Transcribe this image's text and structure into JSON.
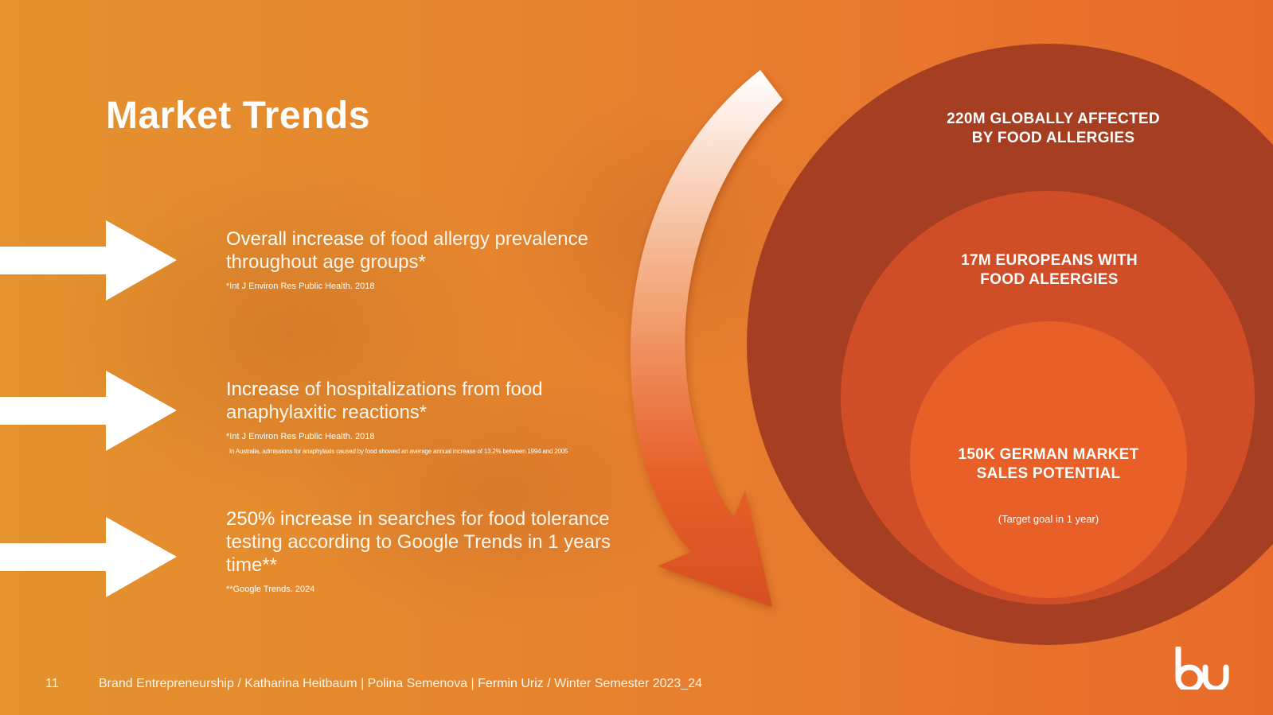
{
  "slide": {
    "title": "Market Trends",
    "page_number": "11"
  },
  "trends": [
    {
      "highlight": "Overall increase",
      "text": " of food allergy prevalence throughout age groups*",
      "note": "*Int J Environ Res Public Health. 2018",
      "note2": ""
    },
    {
      "highlight": "Increase",
      "text": " of hospitalizations from food anaphylaxitic reactions*",
      "note": "*Int J Environ Res Public Health. 2018",
      "note2": "In Australia, admissions for anaphylaxis caused by food showed an average annual increase of 13.2% between 1994 and 2005"
    },
    {
      "highlight": "250% increase",
      "text": " in searches for food tolerance testing according to Google Trends in 1 years time**",
      "note": "**Google Trends. 2024",
      "note2": ""
    }
  ],
  "market_circles": {
    "outer": {
      "line1": "220M GLOBALLY AFFECTED",
      "line2": "BY FOOD ALLERGIES",
      "color": "#a63f22"
    },
    "middle": {
      "line1": "17M EUROPEANS WITH",
      "line2": "FOOD ALEERGIES",
      "color": "#d04e27"
    },
    "inner": {
      "line1": "150K GERMAN MARKET",
      "line2": "SALES POTENTIAL",
      "sub": "(Target goal in 1 year)",
      "color": "#e85f27"
    }
  },
  "footer": {
    "course": "Brand Entrepreneurship / Katharina Heitbaum | Polina Semenova | ",
    "highlight_name": "Fermin Uriz",
    "semester": " / Winter Semester 2023_24"
  },
  "logo": {
    "text": "bu"
  }
}
